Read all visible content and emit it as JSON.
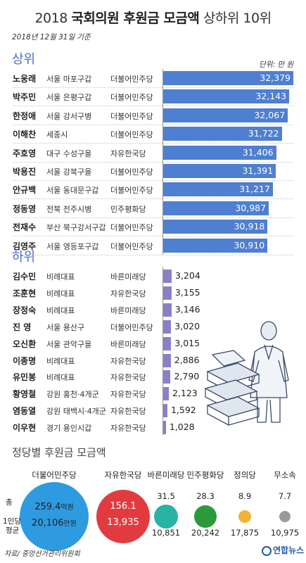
{
  "title_year": "2018",
  "title_bold": "국회의원 후원금 모금액",
  "title_rest": "상하위 10위",
  "date": "2018년 12월 31일 기준",
  "unit": "단위: 만 원",
  "top_label": "상위",
  "bottom_label": "하위",
  "party_title": "정당별 후원금 모금액",
  "source": "자료/ 중앙선거관리위원회",
  "logo": "연합뉴스",
  "colors": {
    "top_bar": "#4f7fd0",
    "bottom_bar": "#8a80c8",
    "accent": "#4a6fc8"
  },
  "chart_data": [
    {
      "type": "bar",
      "title": "상위",
      "unit": "만 원",
      "categories": [
        "노웅래",
        "박주민",
        "한정애",
        "이해찬",
        "주호영",
        "박용진",
        "안규백",
        "정동영",
        "전재수",
        "김영주"
      ],
      "districts": [
        "서울 마포구갑",
        "서울 은평구갑",
        "서울 강서구병",
        "세종시",
        "대구 수성구을",
        "서울 강북구을",
        "서울 동대문구갑",
        "전북 전주시병",
        "부산 북구강서구갑",
        "서울 영등포구갑"
      ],
      "parties": [
        "더불어민주당",
        "더불어민주당",
        "더불어민주당",
        "더불어민주당",
        "자유한국당",
        "더불어민주당",
        "더불어민주당",
        "민주평화당",
        "더불어민주당",
        "더불어민주당"
      ],
      "values": [
        32379,
        32143,
        32067,
        31722,
        31406,
        31391,
        31217,
        30987,
        30918,
        30910
      ],
      "value_labels": [
        "32,379",
        "32,143",
        "32,067",
        "31,722",
        "31,406",
        "31,391",
        "31,217",
        "30,987",
        "30,918",
        "30,910"
      ]
    },
    {
      "type": "bar",
      "title": "하위",
      "unit": "만 원",
      "categories": [
        "김수민",
        "조훈현",
        "장정숙",
        "진  영",
        "오신환",
        "이종명",
        "유민봉",
        "황영철",
        "염동열",
        "이우현"
      ],
      "districts": [
        "비례대표",
        "비례대표",
        "비례대표",
        "서울 용산구",
        "서울 관악구을",
        "비례대표",
        "비례대표",
        "강원 홍천·4개군",
        "강원 태백시·4개군",
        "경기 용인시갑"
      ],
      "parties": [
        "바른미래당",
        "자유한국당",
        "바른미래당",
        "더불어민주당",
        "바른미래당",
        "자유한국당",
        "자유한국당",
        "자유한국당",
        "자유한국당",
        "자유한국당"
      ],
      "values": [
        3204,
        3155,
        3146,
        3020,
        3015,
        2886,
        2790,
        2123,
        1592,
        1028
      ],
      "value_labels": [
        "3,204",
        "3,155",
        "3,146",
        "3,020",
        "3,015",
        "2,886",
        "2,790",
        "2,123",
        "1,592",
        "1,028"
      ]
    },
    {
      "type": "scatter",
      "title": "정당별 후원금 모금액",
      "categories": [
        "더불어민주당",
        "자유한국당",
        "바른미래당",
        "민주평화당",
        "정의당",
        "무소속"
      ],
      "series": [
        {
          "name": "총",
          "unit": "억원",
          "values": [
            259.4,
            156.1,
            31.5,
            28.3,
            8.9,
            7.7
          ],
          "labels": [
            "259.4",
            "156.1",
            "31.5",
            "28.3",
            "8.9",
            "7.7"
          ]
        },
        {
          "name": "1인당 평균",
          "unit": "만원",
          "values": [
            20106,
            13935,
            10851,
            20242,
            17875,
            10975
          ],
          "labels": [
            "20,106",
            "13,935",
            "10,851",
            "20,242",
            "17,875",
            "10,975"
          ]
        }
      ],
      "colors": [
        "#2e9be0",
        "#e23b3f",
        "#27b3a5",
        "#2a9a3c",
        "#f2b233",
        "#9a9a9a"
      ],
      "side_labels": {
        "total": "총",
        "avg_line1": "1인당",
        "avg_line2": "평균",
        "unit_total": "억원",
        "unit_avg": "만원"
      }
    }
  ]
}
